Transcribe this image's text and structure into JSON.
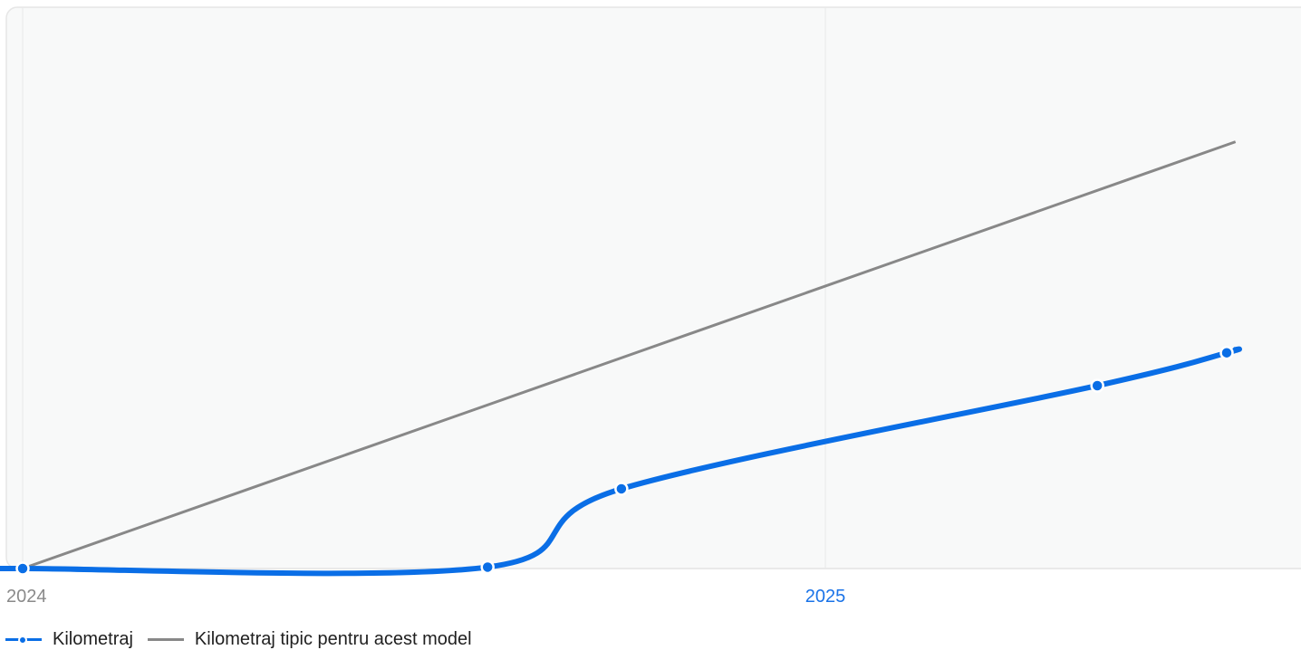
{
  "chart_data": {
    "type": "line",
    "x_tick_labels": [
      "2024",
      "2025"
    ],
    "x_tick_colors": [
      "#8a8a8a",
      "#1a73e8"
    ],
    "xlim": [
      "2024-01-01",
      "2025-07-05"
    ],
    "ylim": [
      0,
      1
    ],
    "grid": "vertical",
    "legend_position": "bottom-left",
    "series": [
      {
        "name": "Kilometraj",
        "color": "#0a6ee6",
        "style": "thick-with-markers",
        "points": [
          {
            "x": "2023-12-20",
            "y": 0
          },
          {
            "x": "2024-01-01",
            "y": 0
          },
          {
            "x": "2024-07-31",
            "y": 0.003
          },
          {
            "x": "2024-09-30",
            "y": 0.17
          },
          {
            "x": "2025-05-05",
            "y": 0.39
          },
          {
            "x": "2025-07-03",
            "y": 0.46
          },
          {
            "x": "2025-07-07",
            "y": 0.467
          }
        ]
      },
      {
        "name": "Kilometraj tipic pentru acest model",
        "color": "#888888",
        "style": "thin",
        "points": [
          {
            "x": "2024-01-01",
            "y": 0
          },
          {
            "x": "2025-07-07",
            "y": 0.91
          }
        ]
      }
    ]
  },
  "legend": {
    "items": [
      {
        "label": "Kilometraj"
      },
      {
        "label": "Kilometraj tipic pentru acest model"
      }
    ]
  }
}
